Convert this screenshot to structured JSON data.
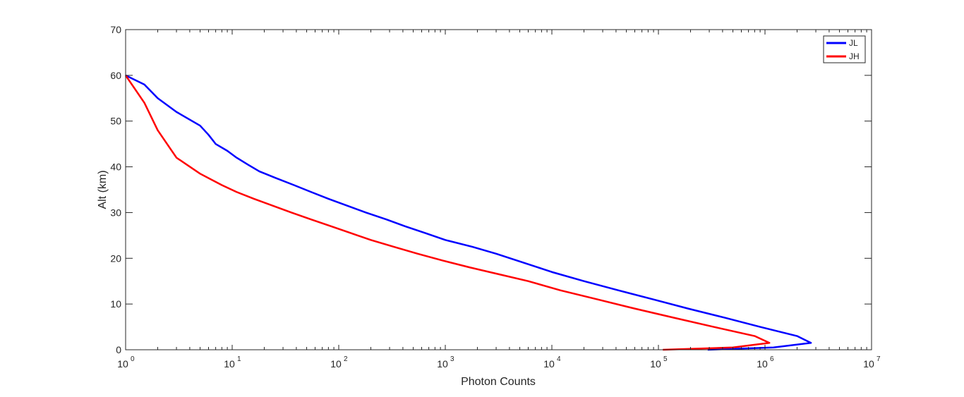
{
  "chart_data": {
    "type": "line",
    "title": "",
    "xlabel": "Photon Counts",
    "ylabel": "Alt (km)",
    "xscale": "log",
    "xlim": [
      1,
      10000000
    ],
    "ylim": [
      0,
      70
    ],
    "x_ticks": [
      {
        "value": 1,
        "base": "10",
        "exp": "0"
      },
      {
        "value": 10,
        "base": "10",
        "exp": "1"
      },
      {
        "value": 100,
        "base": "10",
        "exp": "2"
      },
      {
        "value": 1000,
        "base": "10",
        "exp": "3"
      },
      {
        "value": 10000,
        "base": "10",
        "exp": "4"
      },
      {
        "value": 100000,
        "base": "10",
        "exp": "5"
      },
      {
        "value": 1000000,
        "base": "10",
        "exp": "6"
      },
      {
        "value": 10000000,
        "base": "10",
        "exp": "7"
      }
    ],
    "y_ticks": [
      "0",
      "10",
      "20",
      "30",
      "40",
      "50",
      "60",
      "70"
    ],
    "grid": false,
    "legend_position": "top-right",
    "series": [
      {
        "name": "JL",
        "color": "#0000ff",
        "x": [
          290000,
          1200000,
          2700000,
          2000000,
          900000,
          420000,
          190000,
          90000,
          42000,
          20000,
          10000,
          5500,
          3000,
          1800,
          1000,
          650,
          420,
          280,
          180,
          120,
          80,
          55,
          38,
          26,
          18,
          14,
          11,
          9,
          7,
          6,
          5,
          3,
          2,
          1.5,
          1
        ],
        "y": [
          0,
          0.5,
          1.5,
          3,
          5,
          7,
          9,
          11,
          13,
          15,
          17,
          19,
          21,
          22.5,
          24,
          25.5,
          27,
          28.5,
          30,
          31.5,
          33,
          34.5,
          36,
          37.5,
          39,
          40.5,
          42,
          43.5,
          45,
          47,
          49,
          52,
          55,
          58,
          60
        ]
      },
      {
        "name": "JH",
        "color": "#ff0000",
        "x": [
          110000,
          500000,
          1100000,
          800000,
          330000,
          140000,
          60000,
          27000,
          12000,
          6000,
          3200,
          1700,
          950,
          550,
          330,
          200,
          130,
          85,
          55,
          36,
          24,
          16,
          11,
          8,
          5,
          3,
          2,
          1.5,
          1
        ],
        "y": [
          0,
          0.5,
          1.5,
          3,
          5,
          7,
          9,
          11,
          13,
          15,
          16.5,
          18,
          19.5,
          21,
          22.5,
          24,
          25.5,
          27,
          28.5,
          30,
          31.5,
          33,
          34.5,
          36,
          38.5,
          42,
          48,
          54,
          60
        ]
      }
    ]
  }
}
